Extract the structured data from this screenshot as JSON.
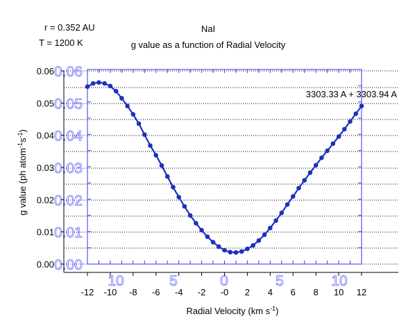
{
  "header": {
    "r_label": "r = 0.352 AU",
    "t_label": "T = 1200 K",
    "species": "NaI",
    "title": "g value as a function of Radial Velocity"
  },
  "colors": {
    "series": "#1f2fbf",
    "inner_axis": "#3333ff",
    "inner_ticks": "#6a6aff",
    "text": "#000000",
    "grid": "#000000"
  },
  "chart_data": {
    "type": "line",
    "title": "g value as a function of Radial Velocity",
    "subtitle": "NaI",
    "xlabel": "Radial Velocity (km s^-1)",
    "ylabel": "g value (ph atom^-1 s^-1)",
    "xlim": [
      -13,
      12.5
    ],
    "ylim": [
      0.0,
      0.06
    ],
    "grid": true,
    "annotation": "3303.33 A + 3303.94 A",
    "x_ticks": [
      "-12",
      "-10",
      "-8",
      "-6",
      "-4",
      "-2",
      "-0",
      "2",
      "4",
      "6",
      "8",
      "10",
      "12"
    ],
    "y_ticks": [
      "0.00",
      "0.01",
      "0.02",
      "0.03",
      "0.04",
      "0.05",
      "0.06"
    ],
    "inner_x_ticks": [
      "10",
      "5",
      "0",
      "5",
      "10"
    ],
    "inner_y_ticks": [
      "0.00",
      "0.01",
      "0.02",
      "0.03",
      "0.04",
      "0.05",
      "0.06"
    ],
    "series": [
      {
        "x": [
          -12.0,
          -11.5,
          -11.0,
          -10.5,
          -10.0,
          -9.5,
          -9.0,
          -8.5,
          -8.0,
          -7.5,
          -7.0,
          -6.5,
          -6.0,
          -5.5,
          -5.0,
          -4.5,
          -4.0,
          -3.5,
          -3.0,
          -2.5,
          -2.0,
          -1.5,
          -1.0,
          -0.5,
          0.0,
          0.5,
          1.0,
          1.5,
          2.0,
          2.5,
          3.0,
          3.5,
          4.0,
          4.5,
          5.0,
          5.5,
          6.0,
          6.5,
          7.0,
          7.5,
          8.0,
          8.5,
          9.0,
          9.5,
          10.0,
          10.5,
          11.0,
          11.5,
          12.0
        ],
        "y": [
          0.0551,
          0.0561,
          0.0564,
          0.0561,
          0.0553,
          0.0537,
          0.0515,
          0.0491,
          0.0465,
          0.0436,
          0.0402,
          0.0368,
          0.0338,
          0.0306,
          0.0272,
          0.0239,
          0.0208,
          0.0179,
          0.0151,
          0.0127,
          0.0105,
          0.0085,
          0.0068,
          0.0054,
          0.0043,
          0.0037,
          0.0036,
          0.0039,
          0.0047,
          0.0058,
          0.0073,
          0.0091,
          0.0112,
          0.0135,
          0.0159,
          0.0185,
          0.021,
          0.0236,
          0.026,
          0.0284,
          0.0307,
          0.033,
          0.0352,
          0.0374,
          0.0396,
          0.0419,
          0.0443,
          0.0467,
          0.0491
        ]
      }
    ]
  }
}
